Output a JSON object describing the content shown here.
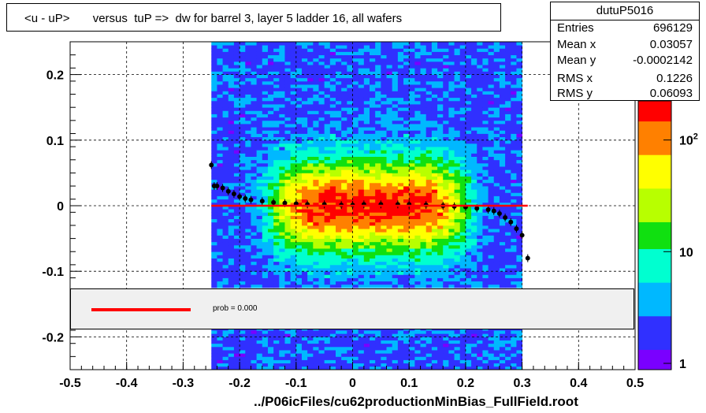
{
  "title": "<u - uP>       versus  tuP =>  dw for barrel 3, layer 5 ladder 16, all wafers",
  "stats": {
    "name": "dutuP5016",
    "rows": [
      {
        "key": "Entries",
        "value": "696129"
      },
      {
        "key": "Mean x",
        "value": "0.03057"
      },
      {
        "key": "Mean y",
        "value": "-0.0002142"
      },
      {
        "key": "RMS x",
        "value": "0.1226"
      },
      {
        "key": "RMS y",
        "value": "0.06093"
      }
    ]
  },
  "legend": {
    "label": "prob = 0.000",
    "color": "#ff0000"
  },
  "footer": "../P06icFiles/cu62productionMinBias_FullField.root",
  "chart_data": {
    "type": "heatmap",
    "title": "<u - uP>       versus  tuP =>  dw for barrel 3, layer 5 ladder 16, all wafers",
    "xlabel": "",
    "ylabel": "",
    "xlim": [
      -0.5,
      0.5
    ],
    "ylim": [
      -0.25,
      0.25
    ],
    "x_ticks": [
      "-0.5",
      "-0.4",
      "-0.3",
      "-0.2",
      "-0.1",
      "0",
      "0.1",
      "0.2",
      "0.3",
      "0.4",
      "0.5"
    ],
    "y_ticks": [
      "-0.2",
      "-0.1",
      "0",
      "0.1",
      "0.2"
    ],
    "grid": true,
    "occupied_x_range": [
      -0.25,
      0.3
    ],
    "colorbar": {
      "scale": "log",
      "ticks": [
        "1",
        "10",
        "10^2"
      ],
      "colors": [
        "#7a00ff",
        "#3030ff",
        "#00b8ff",
        "#00ffd0",
        "#10e010",
        "#b8ff00",
        "#ffff00",
        "#ff8000",
        "#ff0000"
      ]
    },
    "profile": {
      "x": [
        -0.25,
        -0.245,
        -0.24,
        -0.23,
        -0.22,
        -0.21,
        -0.2,
        -0.19,
        -0.18,
        -0.16,
        -0.14,
        -0.12,
        -0.1,
        -0.08,
        -0.05,
        -0.02,
        0,
        0.02,
        0.05,
        0.08,
        0.1,
        0.13,
        0.16,
        0.18,
        0.2,
        0.22,
        0.24,
        0.25,
        0.26,
        0.27,
        0.28,
        0.29,
        0.3,
        0.31
      ],
      "y": [
        0.062,
        0.03,
        0.03,
        0.027,
        0.022,
        0.018,
        0.014,
        0.011,
        0.009,
        0.007,
        0.005,
        0.004,
        0.003,
        0.002,
        0.002,
        0.001,
        0.001,
        0.002,
        0.002,
        0.002,
        0.002,
        0.001,
        0.0,
        -0.001,
        -0.002,
        -0.004,
        -0.006,
        -0.008,
        -0.012,
        -0.018,
        -0.025,
        -0.035,
        -0.045,
        -0.08
      ]
    },
    "fit": {
      "x": [
        -0.25,
        0.31
      ],
      "y": [
        0.0,
        0.0
      ],
      "color": "#ff0000"
    }
  }
}
